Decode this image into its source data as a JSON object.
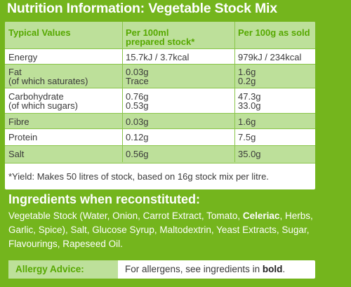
{
  "title": "Nutrition Information: Vegetable Stock Mix",
  "table": {
    "headers": {
      "col1": "Typical Values",
      "col2_line1": "Per 100ml",
      "col2_line2": "prepared stock*",
      "col3": "Per 100g as sold"
    },
    "rows": [
      {
        "label": "Energy",
        "sublabel": "",
        "v1": "15.7kJ / 3.7kcal",
        "v1b": "",
        "v2": "979kJ / 234kcal",
        "v2b": ""
      },
      {
        "label": "Fat",
        "sublabel": "(of which saturates)",
        "v1": "0.03g",
        "v1b": "Trace",
        "v2": "1.6g",
        "v2b": "0.2g"
      },
      {
        "label": "Carbohydrate",
        "sublabel": "(of which sugars)",
        "v1": "0.76g",
        "v1b": "0.53g",
        "v2": "47.3g",
        "v2b": "33.0g"
      },
      {
        "label": "Fibre",
        "sublabel": "",
        "v1": "0.03g",
        "v1b": "",
        "v2": "1.6g",
        "v2b": ""
      },
      {
        "label": "Protein",
        "sublabel": "",
        "v1": "0.12g",
        "v1b": "",
        "v2": "7.5g",
        "v2b": ""
      },
      {
        "label": "Salt",
        "sublabel": "",
        "v1": "0.56g",
        "v1b": "",
        "v2": "35.0g",
        "v2b": ""
      }
    ],
    "footnote": "*Yield: Makes 50 litres of stock, based on 16g stock mix per litre."
  },
  "ingredients": {
    "title": "Ingredients when reconstituted:",
    "text_before": "Vegetable Stock (Water, Onion, Carrot Extract, Tomato, ",
    "allergen": "Celeriac",
    "text_after": ", Herbs, Garlic, Spice), Salt, Glucose Syrup, Maltodextrin, Yeast Extracts, Sugar, Flavourings, Rapeseed Oil."
  },
  "allergy": {
    "label": "Allergy Advice:",
    "text": "For allergens, see ingredients in ",
    "bold_word": "bold",
    "text_end": "."
  },
  "colors": {
    "background": "#74b51d",
    "header_text": "#56a800",
    "shade": "#bde09a"
  }
}
